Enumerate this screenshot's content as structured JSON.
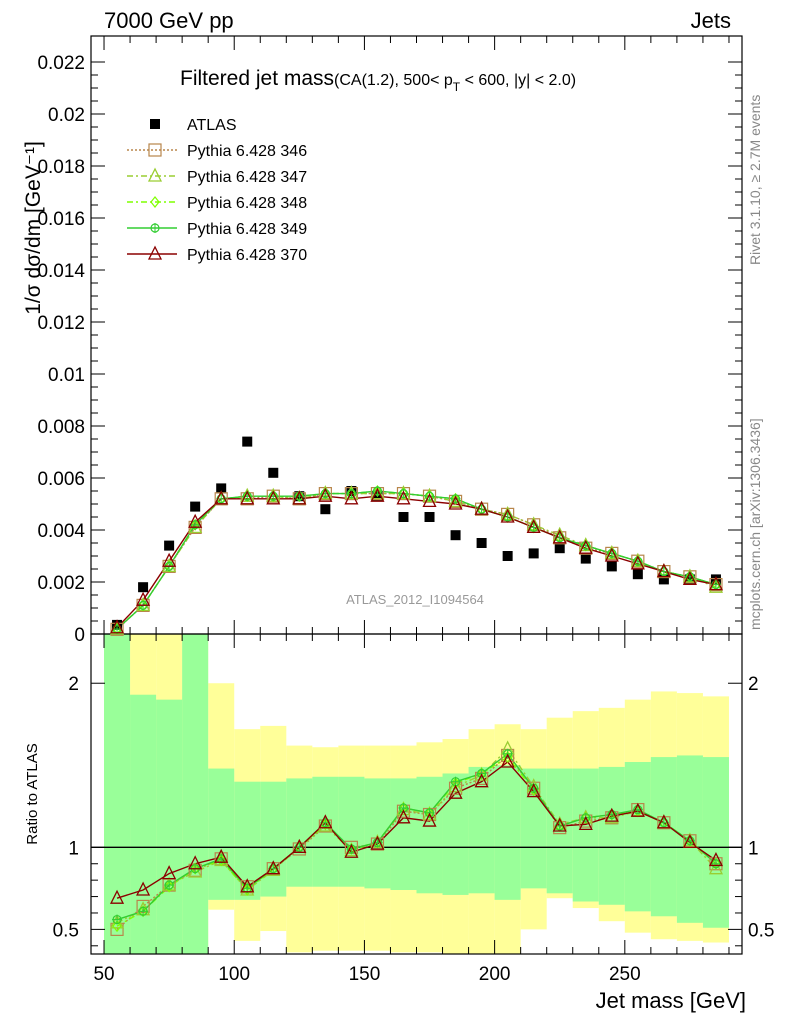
{
  "header": {
    "left": "7000 GeV pp",
    "right": "Jets"
  },
  "side_labels": {
    "rivet": "Rivet 3.1.10, ≥ 2.7M events",
    "mcplots": "mcplots.cern.ch [arXiv:1306.3436]"
  },
  "watermark": "ATLAS_2012_I1094564",
  "colors": {
    "atlas": "#000000",
    "p346": "#b8864b",
    "p347": "#9acd32",
    "p348": "#7fff00",
    "p349": "#32cd32",
    "p370": "#8b0000",
    "band_inner": "#99ff99",
    "band_outer": "#ffff99"
  },
  "chart_data": [
    {
      "type": "scatter",
      "title_main": "Filtered jet mass",
      "title_sub_a": "(CA(1.2), 500< p",
      "title_sub_b": "T",
      "title_sub_c": " < 600, |y| < 2.0)",
      "ylabel": "1/σ dσ/dm [GeV⁻¹]",
      "xlim": [
        45,
        295
      ],
      "ylim": [
        0,
        0.023
      ],
      "yticks": [
        "0",
        "0.002",
        "0.004",
        "0.006",
        "0.008",
        "0.01",
        "0.012",
        "0.014",
        "0.016",
        "0.018",
        "0.02",
        "0.022"
      ],
      "yticks_values": [
        0,
        0.002,
        0.004,
        0.006,
        0.008,
        0.01,
        0.012,
        0.014,
        0.016,
        0.018,
        0.02,
        0.022
      ],
      "x": [
        55,
        65,
        75,
        85,
        95,
        105,
        115,
        125,
        135,
        145,
        155,
        165,
        175,
        185,
        195,
        205,
        215,
        225,
        235,
        245,
        255,
        265,
        275,
        285
      ],
      "series": [
        {
          "name": "ATLAS",
          "key": "atlas",
          "values": [
            0.00035,
            0.0018,
            0.0034,
            0.0049,
            0.0056,
            0.0074,
            0.0062,
            0.0053,
            0.0048,
            0.0055,
            0.0053,
            0.0045,
            0.0045,
            0.0038,
            0.0035,
            0.003,
            0.0031,
            0.0033,
            0.0029,
            0.0026,
            0.0023,
            0.0021,
            0.0021,
            0.0021
          ]
        },
        {
          "name": "Pythia 6.428 346",
          "key": "p346",
          "values": [
            0.00018,
            0.0011,
            0.0026,
            0.0041,
            0.0052,
            0.0052,
            0.0053,
            0.0052,
            0.0054,
            0.0054,
            0.0054,
            0.0054,
            0.0053,
            0.0051,
            0.0048,
            0.0046,
            0.0042,
            0.0037,
            0.0033,
            0.0031,
            0.0028,
            0.0024,
            0.0022,
            0.0019
          ]
        },
        {
          "name": "Pythia 6.428 347",
          "key": "p347",
          "values": [
            0.0002,
            0.0011,
            0.0026,
            0.0041,
            0.0052,
            0.0053,
            0.0053,
            0.0052,
            0.0054,
            0.0054,
            0.0054,
            0.0054,
            0.0053,
            0.0051,
            0.0048,
            0.0046,
            0.0042,
            0.0038,
            0.0034,
            0.0031,
            0.0028,
            0.0024,
            0.0022,
            0.0018
          ]
        },
        {
          "name": "Pythia 6.428 348",
          "key": "p348",
          "values": [
            0.0002,
            0.0011,
            0.0026,
            0.0042,
            0.0052,
            0.0053,
            0.0053,
            0.0053,
            0.0054,
            0.0054,
            0.0055,
            0.0054,
            0.0053,
            0.0052,
            0.0048,
            0.0045,
            0.0041,
            0.0037,
            0.0034,
            0.0031,
            0.0028,
            0.0024,
            0.0022,
            0.0019
          ]
        },
        {
          "name": "Pythia 6.428 349",
          "key": "p349",
          "values": [
            0.00019,
            0.0011,
            0.0026,
            0.0042,
            0.0052,
            0.0053,
            0.0053,
            0.0053,
            0.0054,
            0.0054,
            0.0055,
            0.0054,
            0.0053,
            0.0052,
            0.0048,
            0.0045,
            0.0041,
            0.0037,
            0.0034,
            0.0031,
            0.0028,
            0.0024,
            0.0022,
            0.0019
          ]
        },
        {
          "name": "Pythia 6.428 370",
          "key": "p370",
          "values": [
            0.00024,
            0.0013,
            0.0028,
            0.0043,
            0.0052,
            0.0052,
            0.0052,
            0.0052,
            0.0053,
            0.0052,
            0.0053,
            0.0052,
            0.0051,
            0.005,
            0.0048,
            0.0045,
            0.0041,
            0.0037,
            0.0033,
            0.003,
            0.0027,
            0.0024,
            0.0021,
            0.0019
          ]
        }
      ],
      "legend_position": "top-left"
    },
    {
      "type": "line",
      "ylabel": "Ratio to ATLAS",
      "xlabel": "Jet mass [GeV]",
      "xlim": [
        45,
        295
      ],
      "ylim": [
        0.35,
        2.3
      ],
      "yticks": [
        "0.5",
        "1",
        "2"
      ],
      "yticks_values": [
        0.5,
        1,
        2
      ],
      "xticks": [
        "50",
        "100",
        "150",
        "200",
        "250"
      ],
      "xticks_values": [
        50,
        100,
        150,
        200,
        250
      ],
      "reference_line": 1,
      "band_edges": [
        50,
        60,
        70,
        80,
        90,
        100,
        110,
        120,
        130,
        140,
        150,
        160,
        170,
        180,
        190,
        200,
        210,
        220,
        230,
        240,
        250,
        260,
        270,
        280,
        290
      ],
      "band_inner": [
        [
          0.2,
          3.0
        ],
        [
          0.2,
          1.93
        ],
        [
          0.2,
          1.9
        ],
        [
          0.2,
          1.85
        ],
        [
          0.2,
          1.48
        ],
        [
          0.2,
          1.23
        ],
        [
          0.2,
          1.4
        ],
        [
          0.2,
          1.4
        ],
        [
          0.2,
          1.4
        ],
        [
          0.2,
          1.4
        ],
        [
          0.2,
          1.4
        ],
        [
          0.2,
          1.4
        ],
        [
          0.2,
          1.4
        ],
        [
          0.2,
          1.4
        ],
        [
          0.2,
          1.4
        ],
        [
          0.2,
          1.4
        ],
        [
          0.2,
          1.4
        ],
        [
          0.2,
          1.4
        ],
        [
          0.2,
          1.4
        ],
        [
          0.2,
          1.4
        ],
        [
          0.2,
          1.4
        ],
        [
          0.2,
          1.4
        ],
        [
          0.2,
          1.4
        ],
        [
          0.2,
          1.4
        ]
      ],
      "band_inner_fixed": [
        [
          0.2,
          3.0
        ],
        [
          0.2,
          1.93
        ],
        [
          0.2,
          1.9
        ],
        [
          0.2,
          3.0
        ],
        [
          0.68,
          1.48
        ],
        [
          0.68,
          1.4
        ],
        [
          0.7,
          1.4
        ],
        [
          0.76,
          1.42
        ],
        [
          0.76,
          1.43
        ],
        [
          0.76,
          1.43
        ],
        [
          0.75,
          1.42
        ],
        [
          0.74,
          1.42
        ],
        [
          0.72,
          1.43
        ],
        [
          0.71,
          1.45
        ],
        [
          0.72,
          1.49
        ],
        [
          0.68,
          1.5
        ],
        [
          0.75,
          1.48
        ],
        [
          0.72,
          1.48
        ],
        [
          0.67,
          1.48
        ],
        [
          0.65,
          1.49
        ],
        [
          0.61,
          1.52
        ],
        [
          0.58,
          1.55
        ],
        [
          0.54,
          1.56
        ],
        [
          0.51,
          1.55
        ]
      ],
      "band_outer": [
        [
          0.2,
          3.0
        ],
        [
          0.2,
          3.0
        ],
        [
          0.2,
          3.0
        ],
        [
          0.2,
          2.37
        ],
        [
          0.62,
          2.0
        ],
        [
          0.43,
          1.72
        ],
        [
          0.49,
          1.74
        ],
        [
          0.36,
          1.62
        ],
        [
          0.37,
          1.61
        ],
        [
          0.37,
          1.62
        ],
        [
          0.37,
          1.62
        ],
        [
          0.36,
          1.62
        ],
        [
          0.36,
          1.64
        ],
        [
          0.34,
          1.66
        ],
        [
          0.34,
          1.72
        ],
        [
          0.34,
          1.75
        ],
        [
          0.5,
          1.72
        ],
        [
          0.69,
          1.79
        ],
        [
          0.63,
          1.83
        ],
        [
          0.55,
          1.85
        ],
        [
          0.48,
          1.9
        ],
        [
          0.44,
          1.95
        ],
        [
          0.43,
          1.94
        ],
        [
          0.42,
          1.92
        ]
      ],
      "series": [
        {
          "name": "Pythia 6.428 346",
          "key": "p346",
          "values": [
            0.5,
            0.64,
            0.77,
            0.86,
            0.93,
            0.76,
            0.87,
            0.99,
            1.13,
            1.0,
            1.02,
            1.22,
            1.2,
            1.36,
            1.42,
            1.56,
            1.36,
            1.12,
            1.16,
            1.18,
            1.23,
            1.15,
            1.04,
            0.9
          ]
        },
        {
          "name": "Pythia 6.428 347",
          "key": "p347",
          "values": [
            0.54,
            0.62,
            0.77,
            0.85,
            0.92,
            0.74,
            0.86,
            1.0,
            1.13,
            0.98,
            1.03,
            1.23,
            1.2,
            1.37,
            1.44,
            1.6,
            1.37,
            1.14,
            1.18,
            1.18,
            1.22,
            1.15,
            1.04,
            0.87
          ]
        },
        {
          "name": "Pythia 6.428 348",
          "key": "p348",
          "values": [
            0.52,
            0.61,
            0.76,
            0.87,
            0.92,
            0.74,
            0.87,
            1.0,
            1.14,
            0.99,
            1.03,
            1.24,
            1.21,
            1.39,
            1.45,
            1.55,
            1.35,
            1.13,
            1.18,
            1.2,
            1.22,
            1.15,
            1.04,
            0.9
          ]
        },
        {
          "name": "Pythia 6.428 349",
          "key": "p349",
          "values": [
            0.56,
            0.61,
            0.77,
            0.87,
            0.93,
            0.75,
            0.87,
            1.0,
            1.15,
            0.99,
            1.03,
            1.24,
            1.21,
            1.4,
            1.45,
            1.57,
            1.36,
            1.13,
            1.18,
            1.2,
            1.23,
            1.15,
            1.04,
            0.9
          ]
        },
        {
          "name": "Pythia 6.428 370",
          "key": "p370",
          "values": [
            0.69,
            0.74,
            0.84,
            0.9,
            0.94,
            0.76,
            0.87,
            1.0,
            1.15,
            0.97,
            1.02,
            1.18,
            1.16,
            1.33,
            1.4,
            1.52,
            1.34,
            1.13,
            1.14,
            1.19,
            1.22,
            1.15,
            1.03,
            0.92
          ]
        }
      ]
    }
  ]
}
